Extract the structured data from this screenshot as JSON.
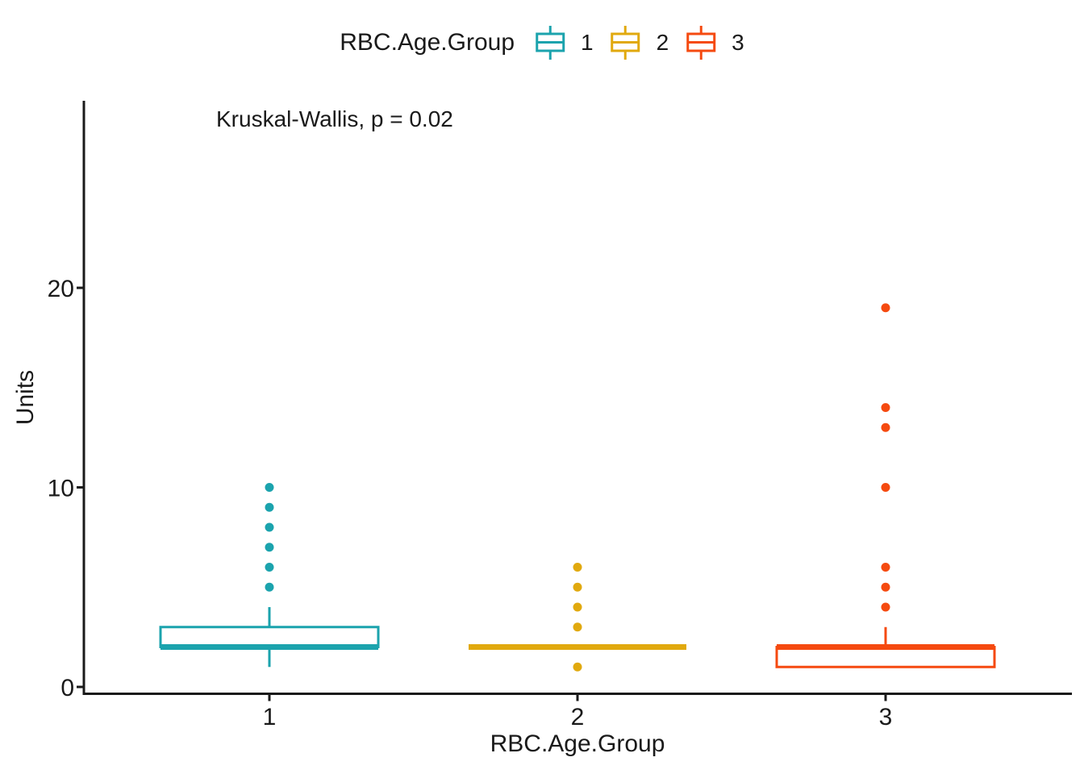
{
  "legend": {
    "title": "RBC.Age.Group",
    "items": [
      {
        "label": "1",
        "color": "#1ba3ad"
      },
      {
        "label": "2",
        "color": "#e1a90e"
      },
      {
        "label": "3",
        "color": "#f54a10"
      }
    ]
  },
  "annotation": {
    "text": "Kruskal-Wallis, p = 0.02"
  },
  "chart_data": {
    "type": "boxplot",
    "title": "",
    "xlabel": "RBC.Age.Group",
    "ylabel": "Units",
    "x_categories": [
      "1",
      "2",
      "3"
    ],
    "y_ticks": [
      0,
      10,
      20
    ],
    "ylim": [
      0,
      29.4
    ],
    "grid": false,
    "legend_position": "top",
    "axis_color": "#1a1a1a",
    "series": [
      {
        "name": "1",
        "color": "#1ba3ad",
        "q1": 2,
        "median": 2,
        "q3": 3,
        "whisker_low": 1,
        "whisker_high": 4,
        "outliers": [
          5,
          6,
          7,
          8,
          9,
          10
        ]
      },
      {
        "name": "2",
        "color": "#e1a90e",
        "q1": 2,
        "median": 2,
        "q3": 2,
        "whisker_low": 2,
        "whisker_high": 2,
        "outliers": [
          1,
          3,
          4,
          5,
          6
        ]
      },
      {
        "name": "3",
        "color": "#f54a10",
        "q1": 1,
        "median": 2,
        "q3": 2,
        "whisker_low": 1,
        "whisker_high": 3,
        "outliers": [
          4,
          5,
          6,
          10,
          13,
          14,
          19
        ]
      }
    ]
  }
}
